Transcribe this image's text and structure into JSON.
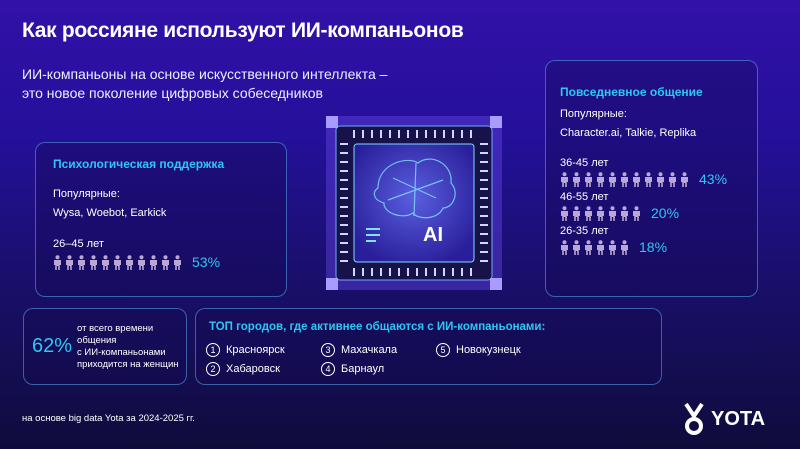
{
  "title": "Как россияне используют ИИ-компаньонов",
  "subtitle": [
    "ИИ-компаньоны на основе искусственного интеллекта –",
    "это новое поколение цифровых собеседников"
  ],
  "chip_label": "AI",
  "psych": {
    "heading": "Психологическая поддержка",
    "popular_label": "Популярные:",
    "apps": "Wysa, Woebot, Earkick",
    "groups": [
      {
        "age": "26–45 лет",
        "icons": 11,
        "percent": "53%"
      }
    ]
  },
  "daily": {
    "heading": "Повседневное общение",
    "popular_label": "Популярные:",
    "apps": "Character.ai, Talkie, Replika",
    "groups": [
      {
        "age": "36-45 лет",
        "icons": 11,
        "percent": "43%"
      },
      {
        "age": "46-55 лет",
        "icons": 7,
        "percent": "20%"
      },
      {
        "age": "26-35 лет",
        "icons": 6,
        "percent": "18%"
      }
    ]
  },
  "women": {
    "percent": "62%",
    "text": [
      "от всего времени общения",
      "с ИИ-компаньонами",
      "приходится на женщин"
    ]
  },
  "cities": {
    "heading": "ТОП городов, где активнее общаются с ИИ-компаньонами:",
    "items": [
      {
        "n": "1",
        "name": "Красноярск"
      },
      {
        "n": "2",
        "name": "Хабаровск"
      },
      {
        "n": "3",
        "name": "Махачкала"
      },
      {
        "n": "4",
        "name": "Барнаул"
      },
      {
        "n": "5",
        "name": "Новокузнецк"
      }
    ]
  },
  "footer": "на основе big data Yota за 2024-2025 гг.",
  "logo": "YOTA",
  "colors": {
    "accent": "#2fc6f3",
    "person": "#b9a8d6",
    "background": "#24109a"
  }
}
